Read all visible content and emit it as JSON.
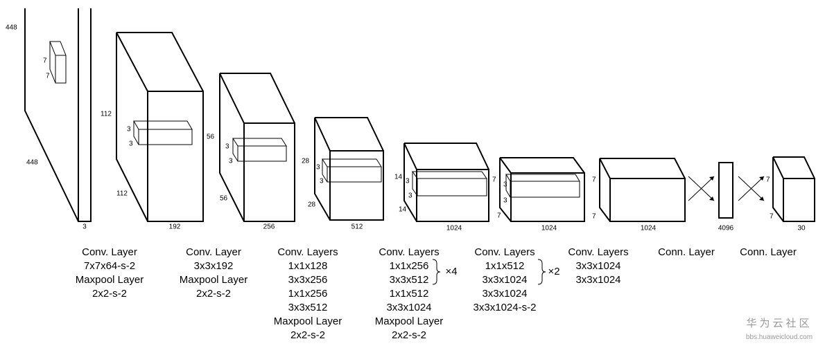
{
  "blocks": [
    {
      "labels": [
        "448",
        "7",
        "7",
        "448",
        "3"
      ]
    },
    {
      "labels": [
        "112",
        "3",
        "3",
        "112",
        "192"
      ]
    },
    {
      "labels": [
        "56",
        "3",
        "3",
        "56",
        "256"
      ]
    },
    {
      "labels": [
        "28",
        "3",
        "3",
        "28",
        "512"
      ]
    },
    {
      "labels": [
        "14",
        "3",
        "3",
        "14",
        "1024"
      ]
    },
    {
      "labels": [
        "7",
        "3",
        "3",
        "7",
        "1024"
      ]
    },
    {
      "labels": [
        "7",
        "7",
        "1024"
      ]
    },
    {
      "labels": [
        "4096"
      ]
    },
    {
      "labels": [
        "7",
        "7",
        "30"
      ]
    }
  ],
  "captions": [
    {
      "lines": [
        "Conv. Layer",
        "7x7x64-s-2",
        "Maxpool Layer",
        "2x2-s-2"
      ]
    },
    {
      "lines": [
        "Conv. Layer",
        "3x3x192",
        "Maxpool Layer",
        "2x2-s-2"
      ]
    },
    {
      "lines": [
        "Conv. Layers",
        "1x1x128",
        "3x3x256",
        "1x1x256",
        "3x3x512",
        "Maxpool Layer",
        "2x2-s-2"
      ]
    },
    {
      "lines": [
        "Conv. Layers",
        "1x1x256",
        "3x3x512",
        "1x1x512",
        "3x3x1024",
        "Maxpool Layer",
        "2x2-s-2"
      ]
    },
    {
      "lines": [
        "Conv. Layers",
        "1x1x512",
        "3x3x1024",
        "3x3x1024",
        "3x3x1024-s-2"
      ]
    },
    {
      "lines": [
        "Conv. Layers",
        "3x3x1024",
        "3x3x1024"
      ]
    },
    {
      "lines": [
        "Conn. Layer"
      ]
    },
    {
      "lines": [
        "Conn. Layer"
      ]
    }
  ],
  "repeats": [
    "×4",
    "×2"
  ],
  "watermark": {
    "brand": "华为云社区",
    "url": "bbs.huaweicloud.com"
  }
}
